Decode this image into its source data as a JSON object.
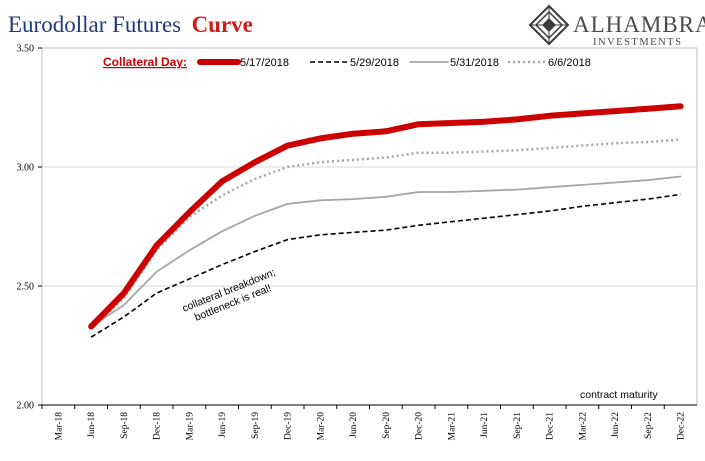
{
  "title_part1": "Eurodollar Futures",
  "title_part2": "Curve",
  "logo": {
    "name": "ALHAMBRA",
    "sub": "INVESTMENTS"
  },
  "legend_title": "Collateral Day:",
  "annotation": [
    "collateral breakdown;",
    "bottleneck is real!"
  ],
  "axis_note": "contract maturity",
  "colors": {
    "s1": "#cc0000",
    "s2": "#000000",
    "s3": "#a6a6a6",
    "s4": "#a6a6a6",
    "title_accent": "#d11a1a",
    "title_main": "#1f3a7a"
  },
  "chart_data": {
    "type": "line",
    "categories": [
      "Mar-18",
      "Jun-18",
      "Sep-18",
      "Dec-18",
      "Mar-19",
      "Jun-19",
      "Sep-19",
      "Dec-19",
      "Mar-20",
      "Jun-20",
      "Sep-20",
      "Dec-20",
      "Mar-21",
      "Jun-21",
      "Sep-21",
      "Dec-21",
      "Mar-22",
      "Jun-22",
      "Sep-22",
      "Dec-22"
    ],
    "ylim": [
      2.0,
      3.5
    ],
    "yticks": [
      "2.00",
      "2.50",
      "3.00",
      "3.50"
    ],
    "ytick_values": [
      2.0,
      2.5,
      3.0,
      3.5
    ],
    "xlabel": "contract maturity",
    "ylabel": "",
    "legend_position": "top",
    "series": [
      {
        "name": "5/17/2018",
        "style": "solid-thick",
        "values": [
          null,
          2.33,
          2.47,
          2.67,
          2.81,
          2.94,
          3.02,
          3.09,
          3.12,
          3.14,
          3.15,
          3.18,
          3.185,
          3.19,
          3.2,
          3.215,
          3.225,
          3.235,
          3.245,
          3.255
        ]
      },
      {
        "name": "5/29/2018",
        "style": "dashed",
        "values": [
          null,
          2.285,
          2.37,
          2.47,
          2.53,
          2.59,
          2.645,
          2.695,
          2.715,
          2.725,
          2.735,
          2.755,
          2.77,
          2.785,
          2.8,
          2.815,
          2.835,
          2.85,
          2.865,
          2.885
        ]
      },
      {
        "name": "5/31/2018",
        "style": "solid-thin",
        "values": [
          null,
          2.33,
          2.42,
          2.56,
          2.65,
          2.73,
          2.795,
          2.845,
          2.86,
          2.865,
          2.875,
          2.895,
          2.895,
          2.9,
          2.905,
          2.915,
          2.925,
          2.935,
          2.945,
          2.96
        ]
      },
      {
        "name": "6/6/2018",
        "style": "dotted",
        "values": [
          null,
          2.32,
          2.45,
          2.65,
          2.79,
          2.88,
          2.95,
          3.0,
          3.02,
          3.03,
          3.04,
          3.06,
          3.06,
          3.065,
          3.07,
          3.08,
          3.09,
          3.1,
          3.105,
          3.115
        ]
      }
    ]
  }
}
